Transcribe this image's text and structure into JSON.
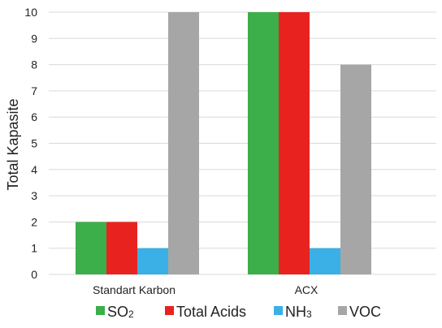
{
  "chart_data": {
    "type": "bar",
    "title": "",
    "xlabel": "",
    "ylabel": "Total Kapasite",
    "ylim": [
      0,
      10
    ],
    "y_ticks": [
      "0",
      "1",
      "2",
      "3",
      "4",
      "5",
      "6",
      "7",
      "8",
      "9",
      "10"
    ],
    "grid": true,
    "legend_position": "bottom",
    "categories": [
      "Standart Karbon",
      "ACX"
    ],
    "series": [
      {
        "name": "SO2",
        "name_main": "SO",
        "name_sub": "2",
        "color": "#3cae4a",
        "values": [
          2,
          10
        ]
      },
      {
        "name": "Total Acids",
        "name_main": "Total Acids",
        "name_sub": "",
        "color": "#e8231f",
        "values": [
          2,
          10
        ]
      },
      {
        "name": "NH3",
        "name_main": "NH",
        "name_sub": "3",
        "color": "#3ab0e6",
        "values": [
          1,
          1
        ]
      },
      {
        "name": "VOC",
        "name_main": "VOC",
        "name_sub": "",
        "color": "#a6a6a6",
        "values": [
          10,
          8
        ]
      }
    ]
  }
}
